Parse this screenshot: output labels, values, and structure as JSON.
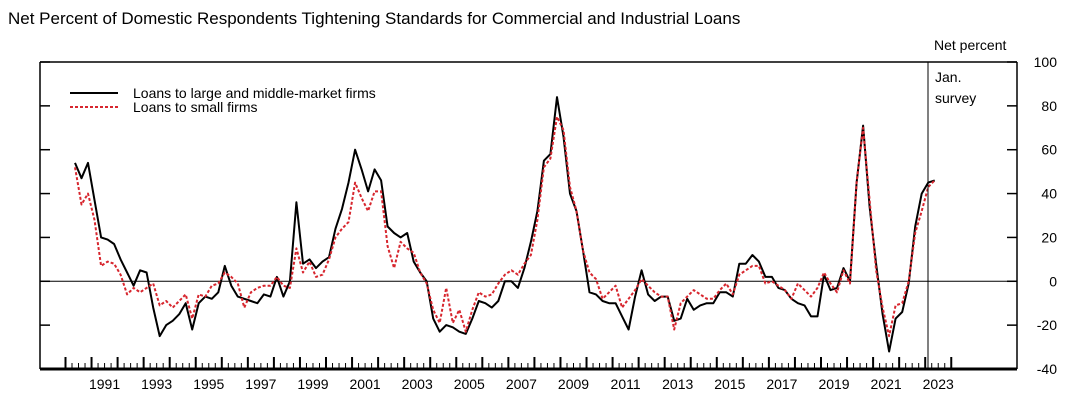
{
  "chart_data": {
    "type": "line",
    "title": "Net Percent of Domestic Respondents Tightening Standards for Commercial and Industrial Loans",
    "ylabel": "Net percent",
    "xlabel": "",
    "ylim": [
      -40,
      100
    ],
    "yticks": [
      100,
      80,
      60,
      40,
      20,
      0,
      -20,
      -40
    ],
    "xtick_labels": [
      "1991",
      "1993",
      "1995",
      "1997",
      "1999",
      "2001",
      "2003",
      "2005",
      "2007",
      "2009",
      "2011",
      "2013",
      "2015",
      "2017",
      "2019",
      "2021",
      "2023"
    ],
    "frequency": "quarterly",
    "start": "1990Q2",
    "annotation": {
      "line1": "Jan.",
      "line2": "survey",
      "at": "2023Q1"
    },
    "legend_position": "top-left",
    "series": [
      {
        "name": "Loans to large and middle-market firms",
        "color": "#000000",
        "style": "solid",
        "values": [
          54,
          47,
          54,
          37,
          20,
          19,
          17,
          10,
          4,
          -2,
          5,
          4,
          -12,
          -25,
          -20,
          -18,
          -15,
          -10,
          -22,
          -10,
          -7,
          -8,
          -5,
          7,
          -2,
          -7,
          -8,
          -9,
          -10,
          -6,
          -7,
          2,
          -7,
          0,
          36,
          8,
          10,
          6,
          9,
          11,
          24,
          33,
          45,
          60,
          51,
          41,
          51,
          46,
          25,
          22,
          20,
          22,
          9,
          4,
          0,
          -17,
          -23,
          -20,
          -21,
          -23,
          -24,
          -17,
          -9,
          -10,
          -12,
          -9,
          0,
          0,
          -3,
          6,
          18,
          32,
          55,
          58,
          84,
          66,
          40,
          32,
          14,
          -5,
          -6,
          -9,
          -10,
          -10,
          -16,
          -22,
          -7,
          5,
          -6,
          -9,
          -7,
          -7,
          -18,
          -17,
          -8,
          -13,
          -11,
          -10,
          -10,
          -5,
          -5,
          -7,
          8,
          8,
          12,
          9,
          2,
          2,
          -3,
          -4,
          -8,
          -10,
          -11,
          -16,
          -16,
          3,
          -4,
          -3,
          6,
          0,
          45,
          71,
          34,
          8,
          -15,
          -32,
          -17,
          -14,
          -1,
          25,
          40,
          45,
          46
        ]
      },
      {
        "name": "Loans to small firms",
        "color": "#d7262e",
        "style": "dotted",
        "values": [
          52,
          35,
          40,
          28,
          7,
          9,
          8,
          3,
          -6,
          -3,
          -5,
          -3,
          -1,
          -11,
          -9,
          -12,
          -9,
          -6,
          -17,
          -6,
          -7,
          -2,
          -1,
          4,
          2,
          -1,
          -12,
          -5,
          -3,
          -2,
          -2,
          2,
          -2,
          -3,
          15,
          4,
          9,
          2,
          3,
          10,
          20,
          24,
          27,
          45,
          38,
          32,
          41,
          41,
          16,
          6,
          18,
          15,
          13,
          4,
          -1,
          -13,
          -19,
          -3,
          -19,
          -13,
          -23,
          -13,
          -5,
          -7,
          -6,
          -1,
          3,
          5,
          3,
          8,
          12,
          28,
          52,
          56,
          75,
          69,
          43,
          32,
          14,
          4,
          1,
          -8,
          -5,
          -2,
          -12,
          -8,
          -4,
          1,
          -2,
          -5,
          -7,
          -7,
          -22,
          -10,
          -7,
          -4,
          -6,
          -8,
          -8,
          -4,
          -1,
          -6,
          3,
          5,
          7,
          7,
          -1,
          0,
          -2,
          -4,
          -8,
          -1,
          -4,
          -7,
          -3,
          4,
          -1,
          -5,
          5,
          -1,
          45,
          70,
          37,
          5,
          -12,
          -25,
          -11,
          -10,
          0,
          22,
          32,
          43,
          46
        ]
      }
    ]
  }
}
